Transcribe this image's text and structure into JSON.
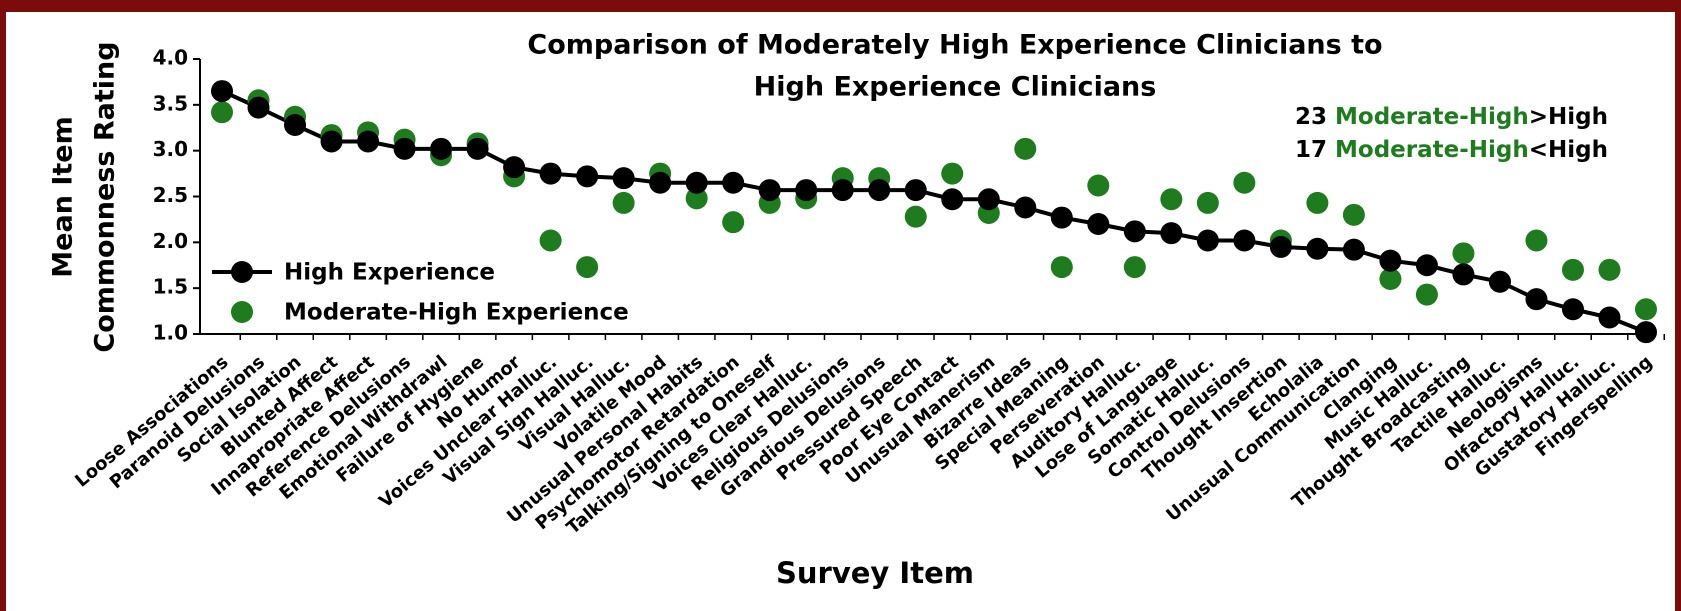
{
  "chart_data": {
    "type": "line",
    "title": [
      "Comparison of Moderately High Experience Clinicians to",
      "High Experience Clinicians"
    ],
    "x_label": "Survey Item",
    "y_label": [
      "Mean Item",
      "Commonness Rating"
    ],
    "annotations": [
      {
        "count": "23",
        "group": "Moderate-High",
        "relation": ">High"
      },
      {
        "count": "17",
        "group": "Moderate-High",
        "relation": "<High"
      }
    ],
    "categories": [
      "Loose Associations",
      "Paranoid Delusions",
      "Social Isolation",
      "Blunted Affect",
      "Innapropriate Affect",
      "Reference Delusions",
      "Emotional Withdrawl",
      "Failure of Hygiene",
      "No Humor",
      "Voices Unclear Halluc.",
      "Visual Sign Halluc.",
      "Visual Halluc.",
      "Volatile Mood",
      "Unusual Personal Habits",
      "Psychomotor Retardation",
      "Talking/Signing to Oneself",
      "Voices Clear Halluc.",
      "Religious Delusions",
      "Grandious Delusions",
      "Pressured Speech",
      "Poor Eye Contact",
      "Unusual Manerism",
      "Bizarre Ideas",
      "Special Meaning",
      "Perseveration",
      "Auditory Halluc.",
      "Lose of Language",
      "Somatic Halluc.",
      "Control Delusions",
      "Thought Insertion",
      "Echolalia",
      "Unusual Communication",
      "Clanging",
      "Music Halluc.",
      "Thought Broadcasting",
      "Tactile Halluc.",
      "Neologisms",
      "Olfactory Halluc.",
      "Gustatory Halluc.",
      "Fingerspelling"
    ],
    "series": [
      {
        "name": "High Experience",
        "color": "#000000",
        "line": true,
        "values": [
          3.65,
          3.47,
          3.28,
          3.1,
          3.1,
          3.02,
          3.02,
          3.02,
          2.82,
          2.75,
          2.72,
          2.7,
          2.65,
          2.65,
          2.65,
          2.57,
          2.57,
          2.57,
          2.57,
          2.57,
          2.47,
          2.47,
          2.38,
          2.27,
          2.2,
          2.12,
          2.1,
          2.02,
          2.02,
          1.95,
          1.93,
          1.92,
          1.8,
          1.75,
          1.65,
          1.57,
          1.38,
          1.27,
          1.18,
          1.02
        ]
      },
      {
        "name": "Moderate-High Experience",
        "color": "#1e7b1e",
        "line": false,
        "values": [
          3.42,
          3.55,
          3.37,
          3.17,
          3.2,
          3.12,
          2.95,
          3.08,
          2.72,
          2.02,
          1.73,
          2.43,
          2.75,
          2.48,
          2.22,
          2.43,
          2.48,
          2.7,
          2.7,
          2.28,
          2.75,
          2.32,
          3.02,
          1.73,
          2.62,
          1.73,
          2.47,
          2.43,
          2.65,
          2.02,
          2.43,
          2.3,
          1.6,
          1.43,
          1.88,
          1.57,
          2.02,
          1.7,
          1.7,
          1.27
        ]
      }
    ],
    "ylim": [
      1.0,
      4.0
    ],
    "yticks": [
      {
        "value": 1.0,
        "label": "1.0"
      },
      {
        "value": 1.5,
        "label": "1.5"
      },
      {
        "value": 2.0,
        "label": "2.0"
      },
      {
        "value": 2.5,
        "label": "2.5"
      },
      {
        "value": 3.0,
        "label": "3.0"
      },
      {
        "value": 3.5,
        "label": "3.5"
      },
      {
        "value": 4.0,
        "label": "4.0"
      }
    ],
    "legend": "left"
  }
}
